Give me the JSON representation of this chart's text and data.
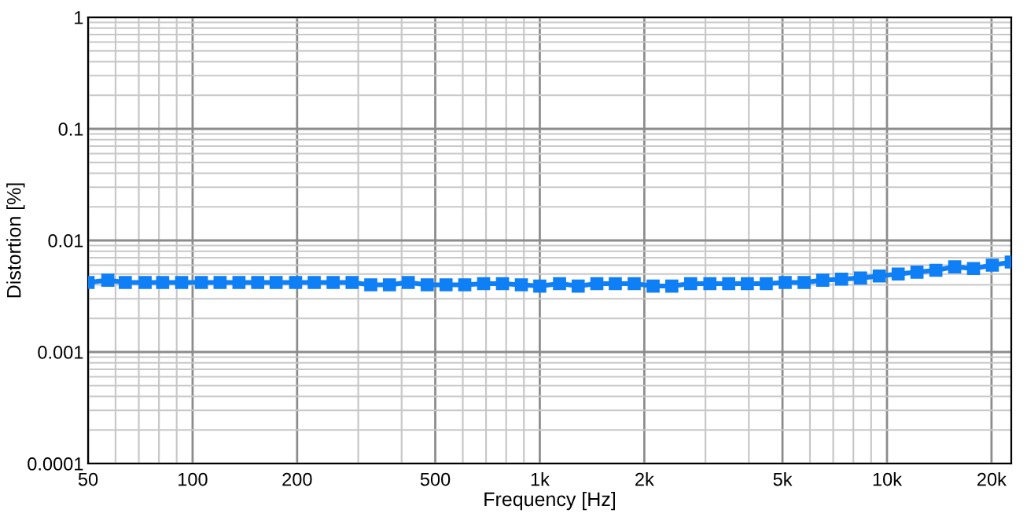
{
  "chart_data": {
    "type": "line",
    "xlabel": "Frequency [Hz]",
    "ylabel": "Distortion [%]",
    "x": [
      50,
      57,
      64,
      73,
      82,
      93,
      106,
      120,
      136,
      154,
      174,
      198,
      224,
      254,
      288,
      326,
      369,
      418,
      474,
      537,
      608,
      689,
      781,
      885,
      1000,
      1140,
      1290,
      1460,
      1650,
      1870,
      2120,
      2400,
      2720,
      3090,
      3500,
      3960,
      4490,
      5090,
      5770,
      6530,
      7400,
      8390,
      9500,
      10770,
      12200,
      13830,
      15670,
      17750,
      20110,
      22800
    ],
    "series": [
      {
        "color": "#0f7ff5",
        "values": [
          0.0042,
          0.0044,
          0.0042,
          0.0042,
          0.0042,
          0.0042,
          0.0042,
          0.0042,
          0.0042,
          0.0042,
          0.0042,
          0.0042,
          0.0042,
          0.0042,
          0.0042,
          0.004,
          0.004,
          0.0042,
          0.004,
          0.004,
          0.004,
          0.0041,
          0.0041,
          0.004,
          0.0039,
          0.0041,
          0.0039,
          0.0041,
          0.0041,
          0.0041,
          0.0039,
          0.0039,
          0.0041,
          0.0041,
          0.0041,
          0.0041,
          0.0041,
          0.0042,
          0.0042,
          0.0044,
          0.0045,
          0.0046,
          0.0048,
          0.005,
          0.0052,
          0.0054,
          0.0058,
          0.0056,
          0.006,
          0.0064
        ]
      }
    ],
    "log": "xy",
    "xlim": [
      50,
      22800
    ],
    "ylim": [
      0.0001,
      1
    ],
    "xticks": [
      50,
      100,
      200,
      500,
      {
        "value": 1000,
        "label": "1k"
      },
      {
        "value": 2000,
        "label": "2k"
      },
      {
        "value": 5000,
        "label": "5k"
      },
      {
        "value": 10000,
        "label": "10k"
      },
      {
        "value": 20000,
        "label": "20k"
      }
    ],
    "yticks": [
      0.0001,
      0.001,
      0.01,
      0.1,
      1
    ],
    "grid": true,
    "marker": "square",
    "line_style": "solid"
  }
}
